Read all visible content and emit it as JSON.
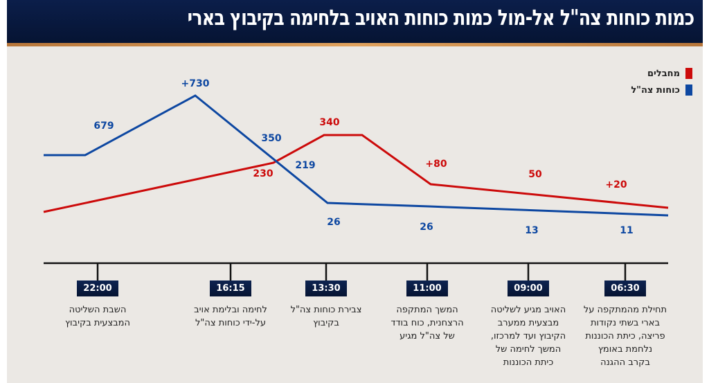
{
  "title": "כמות כוחות צה\"ל אל-מול כמות כוחות האויב בלחימה בקיבוץ בארי",
  "colors": {
    "idf": "#0d47a1",
    "terrorists": "#cc0a0a",
    "navy": "#0b1e4a",
    "accent": "#d89a55"
  },
  "chart_data": {
    "type": "line",
    "title": "כמות כוחות צה\"ל אל-מול כמות כוחות האויב בלחימה בקיבוץ בארי",
    "legend_position": "top-right",
    "grid": false,
    "x": [
      "22:00",
      "16:15",
      "13:30",
      "11:00",
      "09:00",
      "06:30"
    ],
    "series": [
      {
        "name": "מחבלים",
        "color": "#cc0a0a",
        "labels": [
          "230",
          "340",
          "+80",
          "50",
          "+20"
        ]
      },
      {
        "name": "כוחות צה\"ל",
        "color": "#0d47a1",
        "labels": [
          "679",
          "+730",
          "350",
          "219",
          "26",
          "26",
          "13",
          "11"
        ]
      }
    ],
    "events": [
      {
        "time": "22:00",
        "text": "השבת השליטה\nהמבצעית בקיבוץ"
      },
      {
        "time": "16:15",
        "text": "לחימה ובלימת אויב\nעל-ידי כוחות צה\"ל"
      },
      {
        "time": "13:30",
        "text": "צבירת כוחות צה\"ל\nבקיבוץ"
      },
      {
        "time": "11:00",
        "text": "המשך המתקפה\nהרצחנית, כוח בודד\nשל צה\"ל מגיע"
      },
      {
        "time": "09:00",
        "text": "האויב מגיע לשליטה\nמבצעית ממערב\nהקיבוץ ועד למרכזו,\nהמשך לחימה של\nכיתת הכוננות"
      },
      {
        "time": "06:30",
        "text": "תחילת מהמתקפה על\nבארי בשתי נקודות\nפריצה, כיתת הכוננות\nנלחמת באומץ\nבקרב ההגנה"
      }
    ]
  }
}
